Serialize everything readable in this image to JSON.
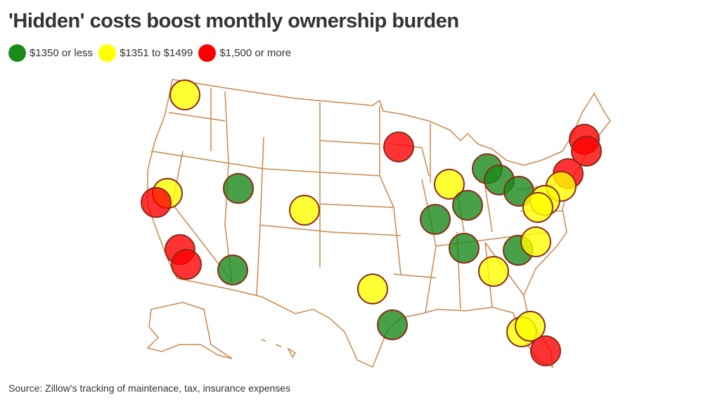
{
  "title": "'Hidden' costs boost monthly ownership burden",
  "legend": [
    {
      "label": "$1350 or less",
      "color": "#1a8a1a",
      "key": "low"
    },
    {
      "label": "$1351 to $1499",
      "color": "#ffff00",
      "key": "mid"
    },
    {
      "label": "$1,500 or more",
      "color": "#ff0000",
      "key": "high"
    }
  ],
  "source": "Source: Zillow's tracking of maintenace, tax, insurance expenses",
  "colors": {
    "border": "#c8884a",
    "marker_stroke": "#8b2a1a"
  },
  "markers": [
    "mid",
    "high",
    "high",
    "high",
    "low",
    "mid",
    "high",
    "mid",
    "low",
    "low",
    "low",
    "mid",
    "low",
    "low",
    "high",
    "mid",
    "mid",
    "mid",
    "low",
    "low",
    "mid",
    "high",
    "high",
    "low",
    "mid",
    "mid",
    "low",
    "mid",
    "mid",
    "high"
  ]
}
